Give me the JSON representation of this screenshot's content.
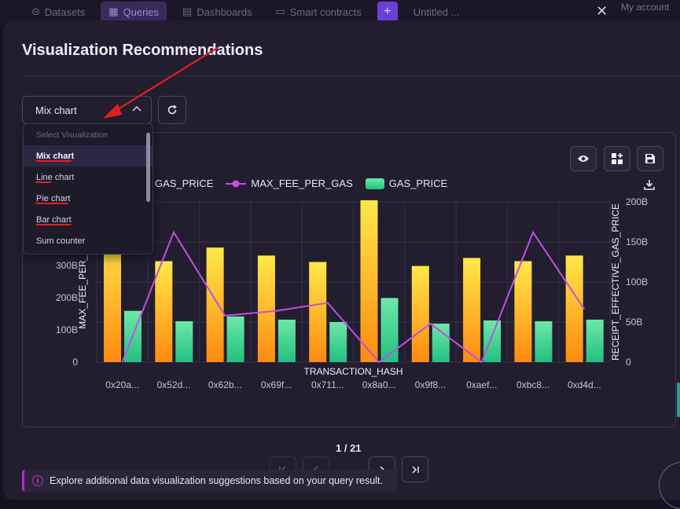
{
  "topbar": {
    "tabs": [
      {
        "label": "Datasets",
        "icon": "dataset-icon"
      },
      {
        "label": "Queries",
        "icon": "query-icon"
      },
      {
        "label": "Dashboards",
        "icon": "dashboard-icon"
      },
      {
        "label": "Smart contracts",
        "icon": "contract-icon"
      }
    ],
    "untitled_tab": "Untitled ...",
    "account_label": "My account"
  },
  "modal": {
    "title": "Visualization Recommendations"
  },
  "select": {
    "value": "Mix chart",
    "header": "Select Visualization",
    "options": [
      "Mix chart",
      "Line chart",
      "Pie chart",
      "Bar chart",
      "Sum counter"
    ]
  },
  "legend": {
    "items": [
      "RECEIPT_EFFECTIVE_GAS_PRICE",
      "MAX_FEE_PER_GAS",
      "GAS_PRICE"
    ],
    "visible_texts": [
      "GAS_PRICE",
      "MAX_FEE_PER_GAS",
      "GAS_PRICE"
    ]
  },
  "colors": {
    "bar_orange_top": "#ffe84a",
    "bar_orange_bottom": "#ff8a10",
    "bar_green_top": "#6ee7a8",
    "bar_green_bottom": "#22c080",
    "line_purple": "#c050e0",
    "accent_purple": "#c026d3",
    "annotation_red": "#e02020"
  },
  "chart_data": {
    "type": "bar",
    "xlabel": "TRANSACTION_HASH",
    "ylabel_left": "MAX_FEE_PER_GAS",
    "ylabel_right": "RECEIPT_EFFECTIVE_GAS_PRICE",
    "categories": [
      "0x20a...",
      "0x52d...",
      "0x62b...",
      "0x69f...",
      "0x711...",
      "0x8a0...",
      "0x9f8...",
      "0xaef...",
      "0xbc8...",
      "0xd4d..."
    ],
    "left_ticks": [
      "0",
      "100B",
      "200B",
      "300B"
    ],
    "right_ticks": [
      "0",
      "50B",
      "100B",
      "150B",
      "200B"
    ],
    "left_ylim": [
      0,
      500
    ],
    "right_ylim": [
      0,
      200
    ],
    "series": [
      {
        "name": "RECEIPT_EFFECTIVE_GAS_PRICE",
        "kind": "bar",
        "axis": "right",
        "values": [
          160,
          126,
          143,
          133,
          125,
          202,
          120,
          130,
          126,
          133
        ]
      },
      {
        "name": "GAS_PRICE",
        "kind": "bar",
        "axis": "right",
        "values": [
          64,
          51,
          57,
          53,
          50,
          80,
          48,
          52,
          51,
          53
        ]
      },
      {
        "name": "MAX_FEE_PER_GAS",
        "kind": "line",
        "axis": "left",
        "values": [
          0,
          405,
          145,
          160,
          185,
          0,
          120,
          0,
          405,
          165
        ]
      }
    ]
  },
  "pagination": {
    "page_text": "1 / 21"
  },
  "info": {
    "text": "Explore additional data visualization suggestions based on your query result."
  }
}
